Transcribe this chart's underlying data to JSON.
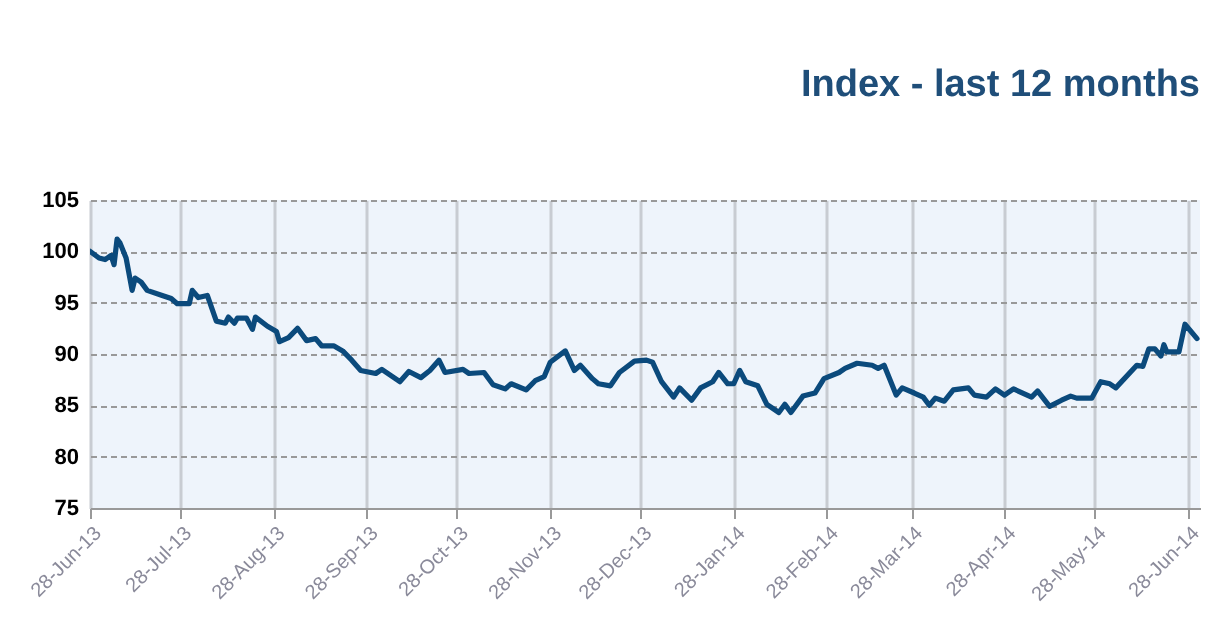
{
  "chart_data": {
    "type": "line",
    "title": "Index - last 12 months",
    "x": [
      "2013-06-28",
      "2013-07-01",
      "2013-07-03",
      "2013-07-05",
      "2013-07-06",
      "2013-07-07",
      "2013-07-08",
      "2013-07-10",
      "2013-07-12",
      "2013-07-13",
      "2013-07-15",
      "2013-07-17",
      "2013-07-22",
      "2013-07-25",
      "2013-07-27",
      "2013-07-31",
      "2013-08-01",
      "2013-08-03",
      "2013-08-06",
      "2013-08-09",
      "2013-08-12",
      "2013-08-13",
      "2013-08-15",
      "2013-08-16",
      "2013-08-19",
      "2013-08-21",
      "2013-08-22",
      "2013-08-26",
      "2013-08-29",
      "2013-08-30",
      "2013-09-02",
      "2013-09-05",
      "2013-09-08",
      "2013-09-11",
      "2013-09-13",
      "2013-09-17",
      "2013-09-20",
      "2013-09-23",
      "2013-09-26",
      "2013-10-01",
      "2013-10-03",
      "2013-10-09",
      "2013-10-12",
      "2013-10-16",
      "2013-10-19",
      "2013-10-22",
      "2013-10-24",
      "2013-10-30",
      "2013-11-01",
      "2013-11-06",
      "2013-11-09",
      "2013-11-13",
      "2013-11-15",
      "2013-11-20",
      "2013-11-23",
      "2013-11-26",
      "2013-11-28",
      "2013-12-03",
      "2013-12-06",
      "2013-12-08",
      "2013-12-12",
      "2013-12-14",
      "2013-12-18",
      "2013-12-21",
      "2013-12-26",
      "2013-12-30",
      "2014-01-01",
      "2014-01-04",
      "2014-01-08",
      "2014-01-10",
      "2014-01-14",
      "2014-01-17",
      "2014-01-21",
      "2014-01-23",
      "2014-01-26",
      "2014-01-28",
      "2014-01-30",
      "2014-02-01",
      "2014-02-05",
      "2014-02-08",
      "2014-02-12",
      "2014-02-14",
      "2014-02-16",
      "2014-02-20",
      "2014-02-24",
      "2014-02-27",
      "2014-03-04",
      "2014-03-06",
      "2014-03-10",
      "2014-03-15",
      "2014-03-17",
      "2014-03-19",
      "2014-03-23",
      "2014-03-25",
      "2014-03-29",
      "2014-04-01",
      "2014-04-03",
      "2014-04-05",
      "2014-04-08",
      "2014-04-11",
      "2014-04-16",
      "2014-04-18",
      "2014-04-22",
      "2014-04-25",
      "2014-04-28",
      "2014-05-01",
      "2014-05-07",
      "2014-05-09",
      "2014-05-13",
      "2014-05-17",
      "2014-05-20",
      "2014-05-22",
      "2014-05-27",
      "2014-05-30",
      "2014-06-02",
      "2014-06-04",
      "2014-06-11",
      "2014-06-13",
      "2014-06-15",
      "2014-06-17",
      "2014-06-19",
      "2014-06-20",
      "2014-06-21",
      "2014-06-25",
      "2014-06-27",
      "2014-07-01"
    ],
    "series": [
      {
        "color": "#0b4a7c",
        "values": [
          100,
          99.35,
          99.2,
          99.6,
          98.7,
          101.2,
          100.8,
          99.35,
          96.2,
          97.4,
          97,
          96.2,
          95.7,
          95.4,
          94.9,
          94.9,
          96.2,
          95.5,
          95.7,
          93.2,
          93,
          93.6,
          93,
          93.5,
          93.5,
          92.4,
          93.6,
          92.7,
          92.2,
          91.2,
          91.6,
          92.5,
          91.3,
          91.5,
          90.8,
          90.8,
          90.3,
          89.4,
          88.4,
          88.1,
          88.5,
          87.3,
          88.3,
          87.7,
          88.4,
          89.4,
          88.2,
          88.5,
          88.1,
          88.2,
          87,
          86.6,
          87.1,
          86.5,
          87.4,
          87.8,
          89.2,
          90.3,
          88.4,
          88.9,
          87.6,
          87.1,
          86.9,
          88.2,
          89.3,
          89.4,
          89.2,
          87.3,
          85.8,
          86.7,
          85.5,
          86.7,
          87.3,
          88.2,
          87.1,
          87.1,
          88.4,
          87.3,
          86.9,
          85.1,
          84.3,
          85.1,
          84.3,
          85.9,
          86.2,
          87.6,
          88.2,
          88.6,
          89.1,
          88.9,
          88.6,
          88.9,
          86,
          86.7,
          86.2,
          85.8,
          85,
          85.7,
          85.4,
          86.5,
          86.7,
          86,
          85.8,
          86.6,
          86,
          86.6,
          85.8,
          86.4,
          84.9,
          85.5,
          85.9,
          85.7,
          85.7,
          87.3,
          87.1,
          86.7,
          88.9,
          88.8,
          90.5,
          90.5,
          89.8,
          90.9,
          90.2,
          90.2,
          92.9,
          91.5
        ]
      }
    ],
    "xlim": [
      "2013-06-28",
      "2014-07-02"
    ],
    "xticks": [
      {
        "value": "2013-06-28",
        "label": "28-Jun-13"
      },
      {
        "value": "2013-07-28",
        "label": "28-Jul-13"
      },
      {
        "value": "2013-08-28",
        "label": "28-Aug-13"
      },
      {
        "value": "2013-09-28",
        "label": "28-Sep-13"
      },
      {
        "value": "2013-10-28",
        "label": "28-Oct-13"
      },
      {
        "value": "2013-11-28",
        "label": "28-Nov-13"
      },
      {
        "value": "2013-12-28",
        "label": "28-Dec-13"
      },
      {
        "value": "2014-01-28",
        "label": "28-Jan-14"
      },
      {
        "value": "2014-02-28",
        "label": "28-Feb-14"
      },
      {
        "value": "2014-03-28",
        "label": "28-Mar-14"
      },
      {
        "value": "2014-04-28",
        "label": "28-Apr-14"
      },
      {
        "value": "2014-05-28",
        "label": "28-May-14"
      },
      {
        "value": "2014-06-28",
        "label": "28-Jun-14"
      }
    ],
    "ylim": [
      75,
      105
    ],
    "yticks": [
      75,
      80,
      85,
      90,
      95,
      100,
      105
    ],
    "grid": true,
    "marker": "none",
    "line_style": "solid"
  }
}
